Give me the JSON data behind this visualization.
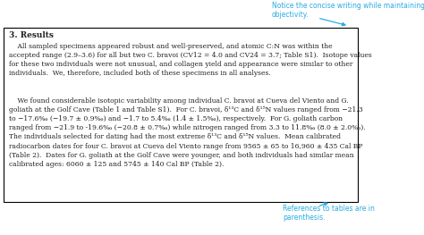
{
  "title": "3. Results",
  "annotation_top": "Notice the concise writing while maintaining\nobjectivity.",
  "annotation_bottom": "References to tables are in\nparenthesis.",
  "para1": "    All sampled specimens appeared robust and well-preserved, and atomic C:N was within the accepted range (2.9–3.6) for all but two C. bravoi (CV12 = 4.0 and CV24 = 3.7; Table S1).  Isotope values for these two individuals were not unusual, and collagen yield and appearance were similar to other individuals.  We, therefore, included both of these specimens in all analyses.",
  "para2": "    We found considerable isotopic variability among individual C. bravoi at Cueva del Viento and G. goliath at the Golf Cave (Table 1 and Table S1).  For C. bravoi, δ13C and δ15N values ranged from −21.3 to −17.6‰ (−19.7 ± 0.9‰) and −1.7 to 5.4‰ (1.4 ± 1.5‰), respectively.  For G. goliath carbon ranged from −21.9 to -19.6‰ (−20.8 ± 0.7‰) while nitrogen ranged from 3.3 to 11.8‰ (8.0 ± 2.0‰). The individuals selected for dating had the most extreme δ13C and δ15N values.  Mean calibrated radiocarbon dates for four C. bravoi at Cueva del Viento range from 9565 ± 65 to 16,960 ± 435 Cal BP (Table 2).  Dates for G. goliath at the Golf Cave were younger, and both individuals had similar mean calibrated ages: 6060 ± 125 and 5745 ± 140 Cal BP (Table 2).",
  "box_edge_color": "#000000",
  "annotation_color": "#29abe2",
  "text_color": "#231f20",
  "bg_color": "#ffffff",
  "fig_width": 4.74,
  "fig_height": 2.63,
  "dpi": 100
}
